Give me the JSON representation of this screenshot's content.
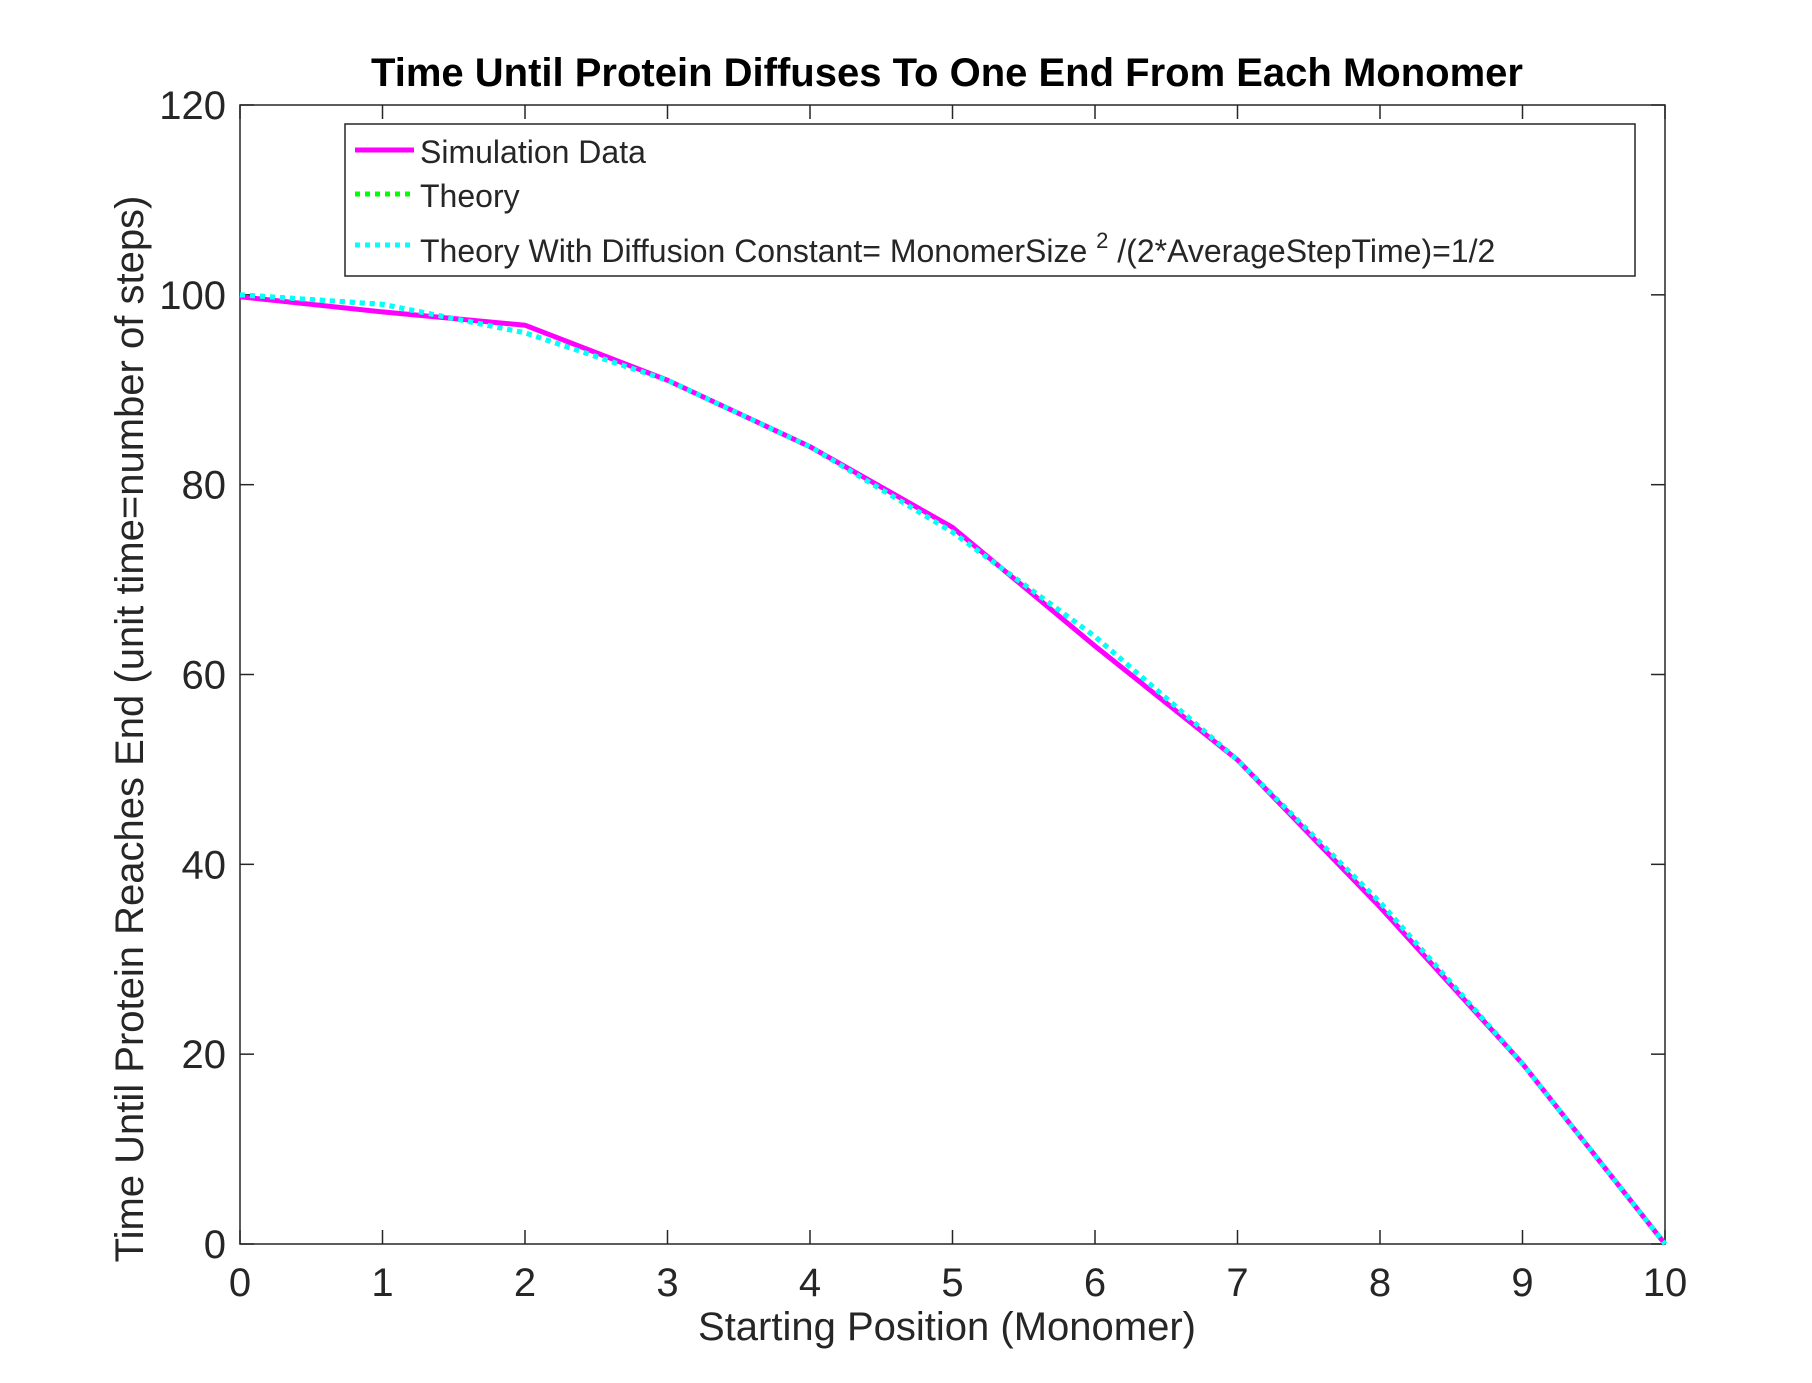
{
  "chart_data": {
    "type": "line",
    "title": "Time Until Protein Diffuses To One End From Each Monomer",
    "xlabel": "Starting Position (Monomer)",
    "ylabel": "Time Until Protein Reaches End (unit time=number of steps)",
    "xlim": [
      0,
      10
    ],
    "ylim": [
      0,
      120
    ],
    "xticks": [
      0,
      1,
      2,
      3,
      4,
      5,
      6,
      7,
      8,
      9,
      10
    ],
    "yticks": [
      0,
      20,
      40,
      60,
      80,
      100,
      120
    ],
    "grid": false,
    "legend_position": "top",
    "series": [
      {
        "name": "Simulation Data",
        "color": "#ff00ff",
        "style": "solid",
        "x": [
          0,
          1,
          2,
          3,
          4,
          5,
          6,
          7,
          8,
          9,
          10
        ],
        "y": [
          99.8,
          98.2,
          96.8,
          91.0,
          84.0,
          75.5,
          63.0,
          51.0,
          35.5,
          19.0,
          0
        ]
      },
      {
        "name": "Theory",
        "color": "#00ff00",
        "style": "dotted",
        "x": [
          0,
          1,
          2,
          3,
          4,
          5,
          6,
          7,
          8,
          9,
          10
        ],
        "y": [
          100,
          99,
          96,
          91,
          84,
          75,
          64,
          51,
          36,
          19,
          0
        ]
      },
      {
        "name": "Theory With Diffusion Constant= MonomerSize^2/(2*AverageStepTime)=1/2",
        "color": "#00ffff",
        "style": "dotted",
        "x": [
          0,
          1,
          2,
          3,
          4,
          5,
          6,
          7,
          8,
          9,
          10
        ],
        "y": [
          100,
          99,
          96,
          91,
          84,
          75,
          64,
          51,
          36,
          19,
          0
        ]
      }
    ],
    "legend": {
      "entries": [
        {
          "label": "Simulation Data"
        },
        {
          "label": "Theory"
        },
        {
          "label_before": "Theory With Diffusion Constant= MonomerSize",
          "superscript": "2",
          "label_after": "/(2*AverageStepTime)=1/2"
        }
      ]
    }
  }
}
